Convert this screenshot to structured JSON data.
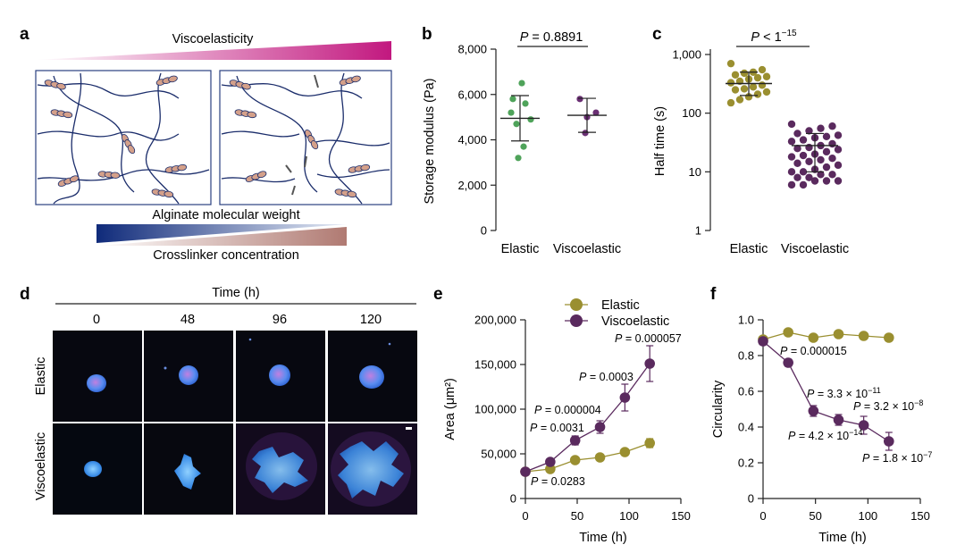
{
  "panels": {
    "a": {
      "letter": "a",
      "top_label": "Viscoelasticity",
      "bottom_label1": "Alginate molecular weight",
      "bottom_label2": "Crosslinker concentration",
      "colors": {
        "visco": "#c2187f",
        "mw": "#1a3a85",
        "crosslinker": "#b07a72",
        "chain": "#1b2d6b",
        "bead": "#d4a08a"
      }
    },
    "b": {
      "letter": "b",
      "ylabel": "Storage modulus (Pa)",
      "p_label": "P = 0.8891",
      "p_prefix": "P",
      "p_value": " = 0.8891",
      "yticks": [
        "0",
        "2,000",
        "4,000",
        "6,000",
        "8,000"
      ]
    },
    "c": {
      "letter": "c",
      "ylabel": "Half time (s)",
      "p_prefix": "P",
      "p_value": " < 1",
      "p_exp": "−15",
      "yticks": [
        "1",
        "10",
        "100",
        "1,000"
      ]
    },
    "d": {
      "letter": "d",
      "time_label": "Time (h)",
      "columns": [
        "0",
        "48",
        "96",
        "120"
      ],
      "rows": [
        "Elastic",
        "Viscoelastic"
      ]
    },
    "e": {
      "letter": "e",
      "ylabel": "Area (μm²)",
      "xlabel": "Time (h)",
      "yticks": [
        "0",
        "50,000",
        "100,000",
        "150,000",
        "200,000"
      ],
      "xticks": [
        "0",
        "50",
        "100",
        "150"
      ],
      "annotations": [
        {
          "prefix": "P",
          "value": " = 0.000057"
        },
        {
          "prefix": "P",
          "value": " = 0.0003"
        },
        {
          "prefix": "P",
          "value": " = 0.000004"
        },
        {
          "prefix": "P",
          "value": " = 0.0031"
        },
        {
          "prefix": "P",
          "value": " = 0.0283"
        }
      ]
    },
    "f": {
      "letter": "f",
      "ylabel": "Circularity",
      "xlabel": "Time (h)",
      "yticks": [
        "0",
        "0.2",
        "0.4",
        "0.6",
        "0.8",
        "1.0"
      ],
      "xticks": [
        "0",
        "50",
        "100",
        "150"
      ],
      "annotations": [
        {
          "prefix": "P",
          "value": " = 0.000015",
          "exp": ""
        },
        {
          "prefix": "P",
          "value": " = 3.3 × 10",
          "exp": "−11"
        },
        {
          "prefix": "P",
          "value": " = 3.2 × 10",
          "exp": "−8"
        },
        {
          "prefix": "P",
          "value": " = 4.2 × 10",
          "exp": "−14"
        },
        {
          "prefix": "P",
          "value": " = 1.8 × 10",
          "exp": "−7"
        }
      ]
    }
  },
  "legend": {
    "elastic": "Elastic",
    "viscoelastic": "Viscoelastic"
  },
  "colors": {
    "elastic_green": "#4fa35a",
    "visco_purple": "#6a2f73",
    "olive": "#9a8f30",
    "dark_purple": "#5a2a5e"
  },
  "chart_data": [
    {
      "panel": "b",
      "type": "scatter",
      "categories": [
        "Elastic",
        "Viscoelastic"
      ],
      "ylabel": "Storage modulus (Pa)",
      "ylim": [
        0,
        8000
      ],
      "series": [
        {
          "name": "Elastic",
          "values": [
            6500,
            5800,
            5600,
            5200,
            4900,
            4700,
            3700,
            3200
          ],
          "mean": 4950,
          "sd": 1000
        },
        {
          "name": "Viscoelastic",
          "values": [
            5800,
            5200,
            5000,
            4300
          ],
          "mean": 5080,
          "sd": 750
        }
      ]
    },
    {
      "panel": "c",
      "type": "scatter",
      "categories": [
        "Elastic",
        "Viscoelastic"
      ],
      "ylabel": "Half time (s)",
      "yscale": "log",
      "ylim": [
        1,
        1000
      ],
      "series": [
        {
          "name": "Elastic",
          "values": [
            700,
            550,
            500,
            480,
            450,
            420,
            400,
            380,
            350,
            330,
            300,
            280,
            260,
            250,
            230,
            210,
            190,
            170,
            150
          ],
          "mean": 320,
          "sd_low": 200,
          "sd_high": 500
        },
        {
          "name": "Viscoelastic",
          "values": [
            65,
            60,
            55,
            50,
            45,
            42,
            40,
            38,
            35,
            33,
            30,
            28,
            26,
            25,
            24,
            22,
            20,
            19,
            18,
            17,
            16,
            15,
            14,
            13,
            12,
            11,
            10,
            10,
            9,
            9,
            8,
            8,
            7,
            7,
            7,
            6,
            6
          ],
          "mean": 28,
          "sd_low": 10,
          "sd_high": 45
        }
      ]
    },
    {
      "panel": "e",
      "type": "line",
      "xlabel": "Time (h)",
      "ylabel": "Area (μm²)",
      "xlim": [
        0,
        150
      ],
      "ylim": [
        0,
        200000
      ],
      "x": [
        0,
        24,
        48,
        72,
        96,
        120
      ],
      "series": [
        {
          "name": "Elastic",
          "values": [
            30000,
            33000,
            43000,
            46000,
            52000,
            62000
          ],
          "err": [
            0,
            1500,
            1500,
            1500,
            2000,
            5000
          ]
        },
        {
          "name": "Viscoelastic",
          "values": [
            30000,
            41000,
            65000,
            80000,
            113000,
            151000
          ],
          "err": [
            0,
            2000,
            5000,
            7000,
            15000,
            20000
          ]
        }
      ]
    },
    {
      "panel": "f",
      "type": "line",
      "xlabel": "Time (h)",
      "ylabel": "Circularity",
      "xlim": [
        0,
        150
      ],
      "ylim": [
        0,
        1.0
      ],
      "x": [
        0,
        24,
        48,
        72,
        96,
        120
      ],
      "series": [
        {
          "name": "Elastic",
          "values": [
            0.89,
            0.93,
            0.9,
            0.92,
            0.91,
            0.9
          ],
          "err": [
            0,
            0,
            0,
            0,
            0,
            0
          ]
        },
        {
          "name": "Viscoelastic",
          "values": [
            0.88,
            0.76,
            0.49,
            0.44,
            0.41,
            0.32
          ],
          "err": [
            0,
            0.02,
            0.03,
            0.03,
            0.05,
            0.05
          ]
        }
      ]
    }
  ]
}
